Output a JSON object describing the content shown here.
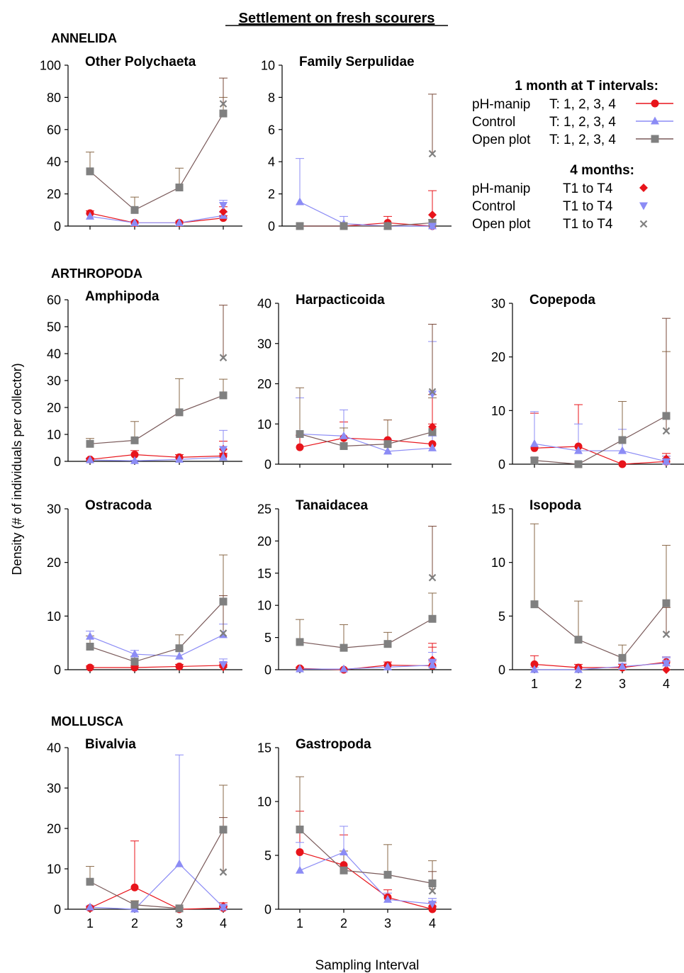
{
  "title": "Settlement on fresh scourers",
  "ylabel": "Density (# of individuals per collector)",
  "xlabel": "Sampling Interval",
  "groups": {
    "annelida": "ANNELIDA",
    "arthropoda": "ARTHROPODA",
    "mollusca": "MOLLUSCA"
  },
  "legend": {
    "heading1": "1 month at T intervals:",
    "heading2": "4 months:",
    "rows1": [
      {
        "name": "pH-manip",
        "t": "T: 1, 2, 3, 4",
        "color": "#e8141b"
      },
      {
        "name": "Control",
        "t": "T: 1, 2, 3, 4",
        "color": "#8c8cf5"
      },
      {
        "name": "Open plot",
        "t": "T: 1, 2, 3, 4",
        "color": "#808080"
      }
    ],
    "rows2": [
      {
        "name": "pH-manip",
        "t": "T1 to T4",
        "color": "#e8141b"
      },
      {
        "name": "Control",
        "t": "T1 to T4",
        "color": "#8c8cf5"
      },
      {
        "name": "Open plot",
        "t": "T1 to T4",
        "color": "#808080"
      }
    ]
  },
  "chart_data": [
    {
      "type": "line",
      "title": "Other Polychaeta",
      "x": [
        1,
        2,
        3,
        4
      ],
      "ylim": [
        0,
        100
      ],
      "yticks": [
        0,
        20,
        40,
        60,
        80,
        100
      ],
      "series": [
        {
          "name": "pH-manip",
          "values": [
            8,
            2,
            2,
            5
          ],
          "err": [
            1.5,
            1,
            1,
            1.5
          ]
        },
        {
          "name": "Control",
          "values": [
            6,
            2,
            2,
            6.5
          ],
          "err": [
            1.5,
            1,
            1,
            2
          ]
        },
        {
          "name": "Open plot",
          "values": [
            34,
            10,
            24,
            70
          ],
          "err": [
            12,
            8,
            12,
            10
          ]
        }
      ],
      "four_month": [
        {
          "name": "pH-manip",
          "value": 9,
          "err": 3
        },
        {
          "name": "Control",
          "value": 13,
          "err": 3
        },
        {
          "name": "Open plot",
          "value": 76,
          "err": 16
        }
      ]
    },
    {
      "type": "line",
      "title": "Family Serpulidae",
      "x": [
        1,
        2,
        3,
        4
      ],
      "ylim": [
        0,
        10
      ],
      "yticks": [
        0,
        2,
        4,
        6,
        8,
        10
      ],
      "series": [
        {
          "name": "pH-manip",
          "values": [
            0,
            0,
            0.2,
            0
          ],
          "err": [
            0,
            0,
            0.4,
            0
          ]
        },
        {
          "name": "Control",
          "values": [
            1.5,
            0.15,
            0,
            0
          ],
          "err": [
            2.7,
            0.45,
            0,
            0
          ]
        },
        {
          "name": "Open plot",
          "values": [
            0,
            0,
            0,
            0.2
          ],
          "err": [
            0,
            0,
            0,
            0.2
          ]
        }
      ],
      "four_month": [
        {
          "name": "pH-manip",
          "value": 0.7,
          "err": 1.5
        },
        {
          "name": "Control",
          "value": 0,
          "err": 0
        },
        {
          "name": "Open plot",
          "value": 4.5,
          "err": 3.7
        }
      ]
    },
    {
      "type": "line",
      "title": "Amphipoda",
      "x": [
        1,
        2,
        3,
        4
      ],
      "ylim": [
        0,
        60
      ],
      "yticks": [
        0,
        10,
        20,
        30,
        40,
        50,
        60
      ],
      "series": [
        {
          "name": "pH-manip",
          "values": [
            0.7,
            2.5,
            1.5,
            2
          ],
          "err": [
            0.5,
            1.5,
            1,
            1
          ]
        },
        {
          "name": "Control",
          "values": [
            0.5,
            0.2,
            0.7,
            1.5
          ],
          "err": [
            0.4,
            0.2,
            0.5,
            1
          ]
        },
        {
          "name": "Open plot",
          "values": [
            6.5,
            7.8,
            18.2,
            24.5
          ],
          "err": [
            2,
            7,
            12.5,
            6
          ]
        }
      ],
      "four_month": [
        {
          "name": "pH-manip",
          "value": 4.5,
          "err": 3
        },
        {
          "name": "Control",
          "value": 4.5,
          "err": 7
        },
        {
          "name": "Open plot",
          "value": 38.5,
          "err": 19.5
        }
      ]
    },
    {
      "type": "line",
      "title": "Harpacticoida",
      "x": [
        1,
        2,
        3,
        4
      ],
      "ylim": [
        0,
        40
      ],
      "yticks": [
        0,
        10,
        20,
        30,
        40
      ],
      "series": [
        {
          "name": "pH-manip",
          "values": [
            4.2,
            6.5,
            6,
            5
          ],
          "err": [
            3,
            4,
            5,
            5
          ]
        },
        {
          "name": "Control",
          "values": [
            7.5,
            7,
            3.2,
            4
          ],
          "err": [
            9,
            6.5,
            3,
            3
          ]
        },
        {
          "name": "Open plot",
          "values": [
            7.5,
            4.5,
            5,
            8
          ],
          "err": [
            11.5,
            4.5,
            6,
            8.5
          ]
        }
      ],
      "four_month": [
        {
          "name": "pH-manip",
          "value": 9.3,
          "err": 8
        },
        {
          "name": "Control",
          "value": 17.5,
          "err": 13
        },
        {
          "name": "Open plot",
          "value": 18,
          "err": 16.8
        }
      ]
    },
    {
      "type": "line",
      "title": "Copepoda",
      "x": [
        1,
        2,
        3,
        4
      ],
      "ylim": [
        0,
        30
      ],
      "yticks": [
        0,
        10,
        20,
        30
      ],
      "series": [
        {
          "name": "pH-manip",
          "values": [
            3,
            3.3,
            0,
            0.5
          ],
          "err": [
            6.5,
            7.8,
            0,
            1
          ]
        },
        {
          "name": "Control",
          "values": [
            3.8,
            2.5,
            2.5,
            0.5
          ],
          "err": [
            6,
            5,
            4,
            1
          ]
        },
        {
          "name": "Open plot",
          "values": [
            0.7,
            0,
            4.5,
            9
          ],
          "err": [
            0.5,
            0,
            7.2,
            12
          ]
        }
      ],
      "four_month": [
        {
          "name": "pH-manip",
          "value": 1,
          "err": 1
        },
        {
          "name": "Control",
          "value": 0.5,
          "err": 0.5
        },
        {
          "name": "Open plot",
          "value": 6.2,
          "err": 21
        }
      ]
    },
    {
      "type": "line",
      "title": "Ostracoda",
      "x": [
        1,
        2,
        3,
        4
      ],
      "ylim": [
        0,
        30
      ],
      "yticks": [
        0,
        10,
        20,
        30
      ],
      "series": [
        {
          "name": "pH-manip",
          "values": [
            0.4,
            0.4,
            0.6,
            0.8
          ],
          "err": [
            0.3,
            0.3,
            0.4,
            0.5
          ]
        },
        {
          "name": "Control",
          "values": [
            6.2,
            2.9,
            2.5,
            6.5
          ],
          "err": [
            1,
            0.7,
            1,
            2
          ]
        },
        {
          "name": "Open plot",
          "values": [
            4.3,
            1.5,
            4,
            12.7
          ],
          "err": [
            2,
            1,
            2.5,
            8.7
          ]
        }
      ],
      "four_month": [
        {
          "name": "pH-manip",
          "value": 0.5,
          "err": 0.4
        },
        {
          "name": "Control",
          "value": 1,
          "err": 1
        },
        {
          "name": "Open plot",
          "value": 6.8,
          "err": 7
        }
      ]
    },
    {
      "type": "line",
      "title": "Tanaidacea",
      "x": [
        1,
        2,
        3,
        4
      ],
      "ylim": [
        0,
        25
      ],
      "yticks": [
        0,
        5,
        10,
        15,
        20,
        25
      ],
      "series": [
        {
          "name": "pH-manip",
          "values": [
            0.2,
            0,
            0.7,
            0.6
          ],
          "err": [
            0.2,
            0,
            0.5,
            3.5
          ]
        },
        {
          "name": "Control",
          "values": [
            0.1,
            0.1,
            0.4,
            0.7
          ],
          "err": [
            0.1,
            0.1,
            0.3,
            0.5
          ]
        },
        {
          "name": "Open plot",
          "values": [
            4.3,
            3.4,
            4,
            7.9
          ],
          "err": [
            3.5,
            3.6,
            1.8,
            4
          ]
        }
      ],
      "four_month": [
        {
          "name": "pH-manip",
          "value": 1.5,
          "err": 2
        },
        {
          "name": "Control",
          "value": 1.2,
          "err": 1.5
        },
        {
          "name": "Open plot",
          "value": 14.3,
          "err": 8
        }
      ]
    },
    {
      "type": "line",
      "title": "Isopoda",
      "x": [
        1,
        2,
        3,
        4
      ],
      "ylim": [
        0,
        15
      ],
      "yticks": [
        0,
        5,
        10,
        15
      ],
      "series": [
        {
          "name": "pH-manip",
          "values": [
            0.5,
            0.2,
            0.2,
            0.7
          ],
          "err": [
            0.8,
            0.3,
            0.3,
            0.5
          ]
        },
        {
          "name": "Control",
          "values": [
            0,
            0,
            0.3,
            0.6
          ],
          "err": [
            0.2,
            0.2,
            0.3,
            0.5
          ]
        },
        {
          "name": "Open plot",
          "values": [
            6.1,
            2.8,
            1.1,
            6.2
          ],
          "err": [
            7.5,
            3.6,
            1.2,
            5.4
          ]
        }
      ],
      "four_month": [
        {
          "name": "pH-manip",
          "value": 0,
          "err": 0
        },
        {
          "name": "Control",
          "value": 0.6,
          "err": 0.6
        },
        {
          "name": "Open plot",
          "value": 3.3,
          "err": 2.5
        }
      ]
    },
    {
      "type": "line",
      "title": "Bivalvia",
      "x": [
        1,
        2,
        3,
        4
      ],
      "ylim": [
        0,
        40
      ],
      "yticks": [
        0,
        10,
        20,
        30,
        40
      ],
      "series": [
        {
          "name": "pH-manip",
          "values": [
            0.3,
            5.4,
            0,
            0.3
          ],
          "err": [
            0.3,
            11.5,
            0,
            0.3
          ]
        },
        {
          "name": "Control",
          "values": [
            0.5,
            0,
            11.2,
            0.5
          ],
          "err": [
            0.4,
            0,
            27,
            0.5
          ]
        },
        {
          "name": "Open plot",
          "values": [
            6.8,
            1.1,
            0.2,
            19.7
          ],
          "err": [
            3.8,
            1,
            0.2,
            11
          ]
        }
      ],
      "four_month": [
        {
          "name": "pH-manip",
          "value": 0.8,
          "err": 0.8
        },
        {
          "name": "Control",
          "value": 0.5,
          "err": 0.5
        },
        {
          "name": "Open plot",
          "value": 9.2,
          "err": 13.5
        }
      ]
    },
    {
      "type": "line",
      "title": "Gastropoda",
      "x": [
        1,
        2,
        3,
        4
      ],
      "ylim": [
        0,
        15
      ],
      "yticks": [
        0,
        5,
        10,
        15
      ],
      "series": [
        {
          "name": "pH-manip",
          "values": [
            5.3,
            4.1,
            1.1,
            0
          ],
          "err": [
            3.8,
            2.8,
            0.7,
            0.2
          ]
        },
        {
          "name": "Control",
          "values": [
            3.6,
            5.3,
            0.9,
            0.5
          ],
          "err": [
            2.6,
            2.4,
            0.6,
            0.5
          ]
        },
        {
          "name": "Open plot",
          "values": [
            7.4,
            3.6,
            3.2,
            2.4
          ],
          "err": [
            4.9,
            1.8,
            2.8,
            2.1
          ]
        }
      ],
      "four_month": [
        {
          "name": "pH-manip",
          "value": 0.3,
          "err": 0.3
        },
        {
          "name": "Control",
          "value": 0.5,
          "err": 0.5
        },
        {
          "name": "Open plot",
          "value": 1.7,
          "err": 1.8
        }
      ]
    }
  ]
}
